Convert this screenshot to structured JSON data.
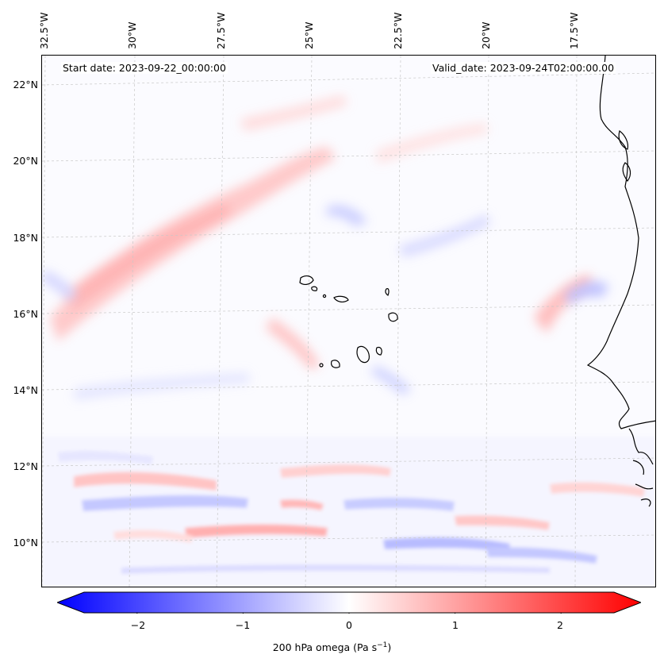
{
  "map": {
    "start_date": "Start date: 2023-09-22_00:00:00",
    "valid_date": "Valid_date: 2023-09-24T02:00:00.00",
    "lon_labels": [
      "32.5°W",
      "30°W",
      "27.5°W",
      "25°W",
      "22.5°W",
      "20°W",
      "17.5°W"
    ],
    "lat_labels": [
      "22°N",
      "20°N",
      "18°N",
      "16°N",
      "14°N",
      "12°N",
      "10°N"
    ]
  },
  "colorbar": {
    "label": "200 hPa omega (Pa s",
    "label_sup": "−1",
    "label_end": ")",
    "ticks": [
      "−2",
      "−1",
      "0",
      "1",
      "2"
    ],
    "tick_values": [
      -2,
      -1,
      0,
      1,
      2
    ],
    "vmin": -2.5,
    "vmax": 2.5,
    "colormap": "bwr",
    "color_low": "#0000ff",
    "color_mid": "#ffffff",
    "color_high": "#ff0000"
  }
}
